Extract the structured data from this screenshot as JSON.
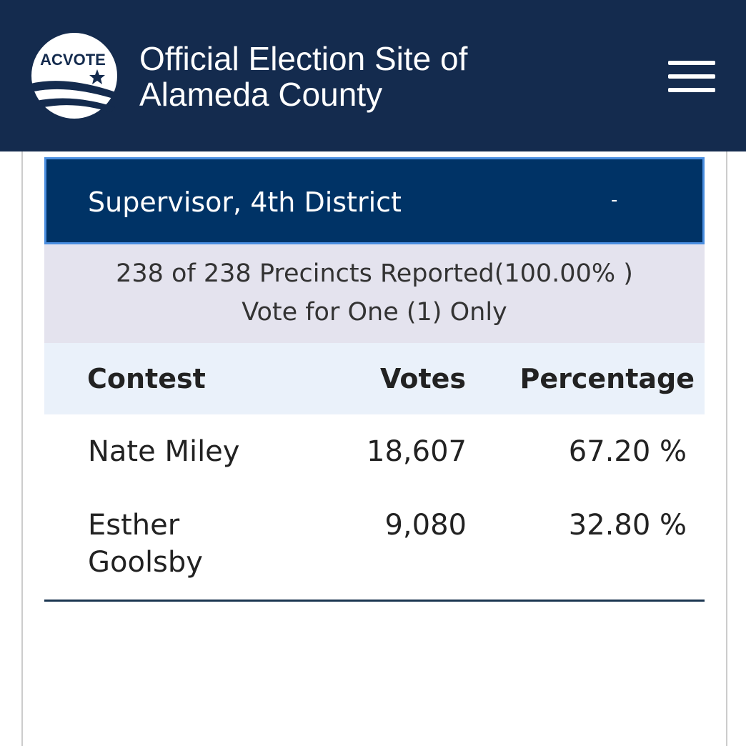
{
  "header": {
    "logo": "ACVOTE",
    "title_lines": [
      "Official Election Site of",
      "Alameda County"
    ]
  },
  "contest": {
    "title": "Supervisor, 4th District",
    "status": "-",
    "info": [
      "238 of 238 Precincts Reported(100.00% )",
      "Vote for One (1) Only"
    ],
    "table": {
      "columns": [
        "Contest",
        "Votes",
        "Percentage"
      ],
      "rows": [
        [
          "Nate Miley",
          "18,607",
          "67.20 %"
        ],
        [
          "Esther Goolsby",
          "9,080",
          "32.80 %"
        ]
      ]
    }
  }
}
